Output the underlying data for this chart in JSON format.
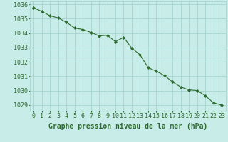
{
  "hours": [
    0,
    1,
    2,
    3,
    4,
    5,
    6,
    7,
    8,
    9,
    10,
    11,
    12,
    13,
    14,
    15,
    16,
    17,
    18,
    19,
    20,
    21,
    22,
    23
  ],
  "pressure": [
    1035.75,
    1035.5,
    1035.2,
    1035.05,
    1034.75,
    1034.35,
    1034.25,
    1034.05,
    1033.8,
    1033.85,
    1033.4,
    1033.7,
    1032.95,
    1032.5,
    1031.6,
    1031.35,
    1031.05,
    1030.6,
    1030.25,
    1030.05,
    1030.0,
    1029.65,
    1029.15,
    1029.0
  ],
  "line_color": "#2d6a2d",
  "marker_color": "#2d6a2d",
  "background_color": "#c8ece8",
  "grid_color": "#a0d0cc",
  "xlabel": "Graphe pression niveau de la mer (hPa)",
  "xlabel_color": "#2d6a2d",
  "tick_color": "#2d6a2d",
  "ylim": [
    1028.6,
    1036.2
  ],
  "yticks": [
    1029,
    1030,
    1031,
    1032,
    1033,
    1034,
    1035,
    1036
  ],
  "tick_fontsize": 6,
  "xlabel_fontsize": 7
}
